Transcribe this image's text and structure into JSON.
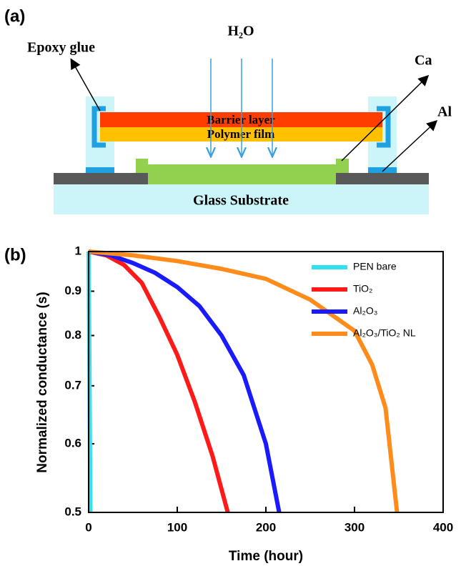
{
  "figure_a": {
    "panel_label": "(a)",
    "water": "H₂O",
    "epoxy": "Epoxy glue",
    "calcium": "Ca",
    "aluminum": "Al",
    "barrier": "Barrier layer",
    "polymer": "Polymer film",
    "substrate": "Glass Substrate"
  },
  "chart_data": {
    "type": "line",
    "panel_label": "(b)",
    "x_label": "Time (hour)",
    "y_label": "Normalized conductance (s)",
    "xlim": [
      0,
      400
    ],
    "xticks": [
      0,
      100,
      200,
      300,
      400
    ],
    "ylim": [
      0.5,
      1
    ],
    "yticks": [
      0.5,
      0.6,
      0.7,
      0.8,
      0.9,
      1
    ],
    "y_scale": "log",
    "legend": "upper right",
    "series": [
      {
        "name": "PEN bare",
        "color": "#33e0f0",
        "x": [
          0,
          2
        ],
        "values": [
          1,
          0.5
        ]
      },
      {
        "name": "TiO₂",
        "color": "#ff1a1a",
        "x": [
          0,
          20,
          40,
          60,
          80,
          100,
          120,
          140,
          157
        ],
        "values": [
          1,
          0.99,
          0.965,
          0.92,
          0.84,
          0.76,
          0.67,
          0.58,
          0.5
        ]
      },
      {
        "name": "Al₂O₃",
        "color": "#1a1aff",
        "x": [
          0,
          25,
          50,
          75,
          100,
          125,
          150,
          175,
          200,
          215
        ],
        "values": [
          1,
          0.99,
          0.97,
          0.945,
          0.91,
          0.865,
          0.8,
          0.72,
          0.6,
          0.5
        ]
      },
      {
        "name": "Al₂O₃/TiO₂ NL",
        "color": "#ff8c1a",
        "x": [
          0,
          50,
          100,
          150,
          200,
          250,
          300,
          320,
          335,
          348
        ],
        "values": [
          1,
          0.99,
          0.975,
          0.955,
          0.93,
          0.88,
          0.81,
          0.74,
          0.66,
          0.5
        ]
      }
    ]
  }
}
